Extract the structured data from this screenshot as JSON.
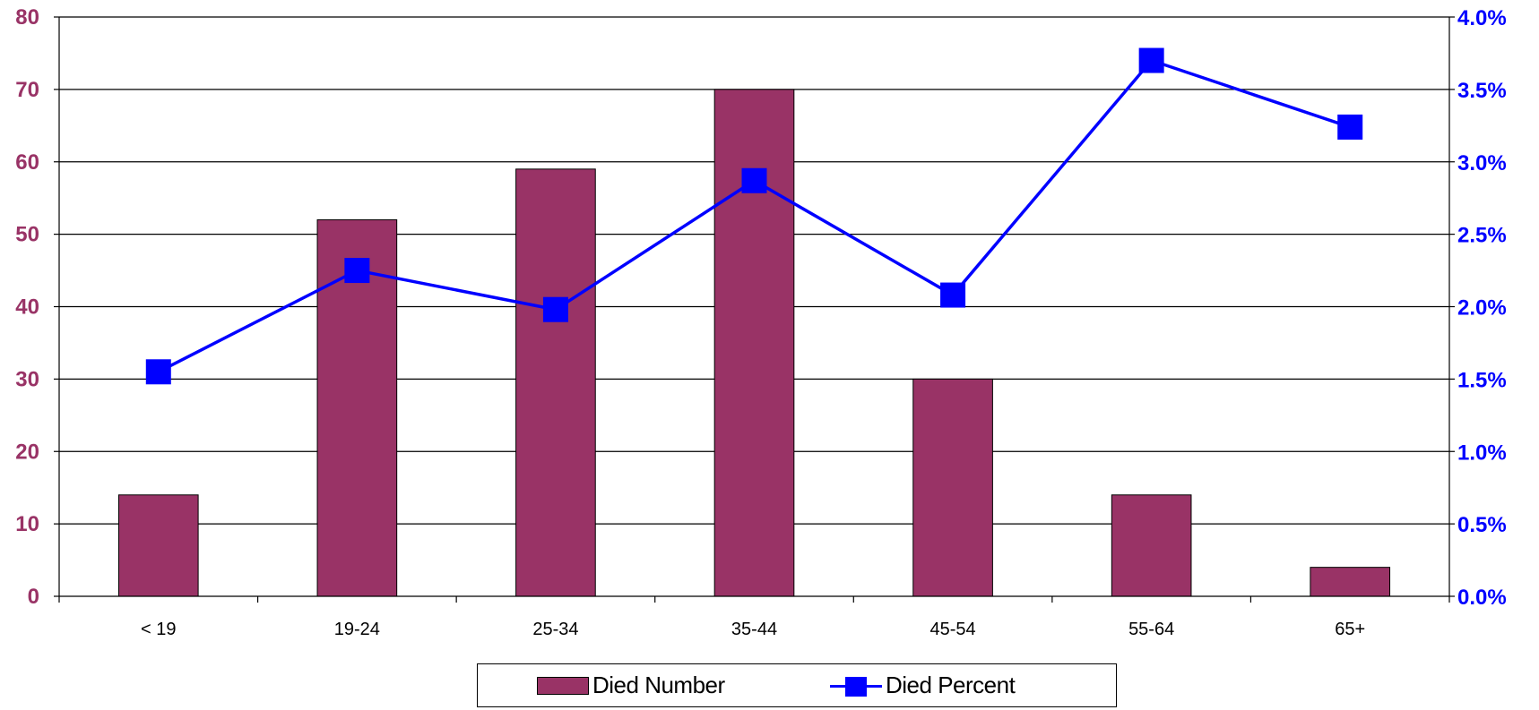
{
  "chart_data": {
    "type": "bar",
    "categories": [
      "< 19",
      "19-24",
      "25-34",
      "35-44",
      "45-54",
      "55-64",
      "65+"
    ],
    "series": [
      {
        "name": "Died Number",
        "type": "bar",
        "axis": "left",
        "color": "#993366",
        "values": [
          14,
          52,
          59,
          70,
          30,
          14,
          4
        ]
      },
      {
        "name": "Died Percent",
        "type": "line",
        "axis": "right",
        "color": "#0000ff",
        "values": [
          1.55,
          2.25,
          1.98,
          2.87,
          2.08,
          3.7,
          3.24
        ]
      }
    ],
    "y_left": {
      "min": 0,
      "max": 80,
      "ticks": [
        "0",
        "10",
        "20",
        "30",
        "40",
        "50",
        "60",
        "70",
        "80"
      ],
      "color": "#993366"
    },
    "y_right": {
      "min": 0,
      "max": 4,
      "unit": "%",
      "ticks": [
        "0.0%",
        "0.5%",
        "1.0%",
        "1.5%",
        "2.0%",
        "2.5%",
        "3.0%",
        "3.5%",
        "4.0%"
      ],
      "color": "#0000ff"
    },
    "grid": true,
    "legend_position": "bottom"
  },
  "legend": {
    "bar_label": "Died Number",
    "line_label": "Died Percent"
  }
}
